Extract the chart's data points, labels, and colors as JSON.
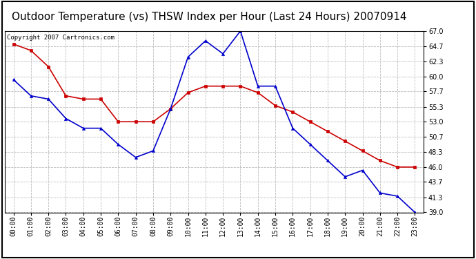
{
  "title": "Outdoor Temperature (vs) THSW Index per Hour (Last 24 Hours) 20070914",
  "copyright_text": "Copyright 2007 Cartronics.com",
  "hours": [
    "00:00",
    "01:00",
    "02:00",
    "03:00",
    "04:00",
    "05:00",
    "06:00",
    "07:00",
    "08:00",
    "09:00",
    "10:00",
    "11:00",
    "12:00",
    "13:00",
    "14:00",
    "15:00",
    "16:00",
    "17:00",
    "18:00",
    "19:00",
    "20:00",
    "21:00",
    "22:00",
    "23:00"
  ],
  "red_temp": [
    65.0,
    64.0,
    61.5,
    57.0,
    56.5,
    56.5,
    53.0,
    53.0,
    53.0,
    55.0,
    57.5,
    58.5,
    58.5,
    58.5,
    57.5,
    55.5,
    54.5,
    53.0,
    51.5,
    50.0,
    48.5,
    47.0,
    46.0,
    46.0
  ],
  "blue_thsw": [
    59.5,
    57.0,
    56.5,
    53.5,
    52.0,
    52.0,
    49.5,
    47.5,
    48.5,
    55.0,
    63.0,
    65.5,
    63.5,
    67.0,
    58.5,
    58.5,
    52.0,
    49.5,
    47.0,
    44.5,
    45.5,
    42.0,
    41.5,
    39.0
  ],
  "ylim_min": 39.0,
  "ylim_max": 67.0,
  "yticks": [
    39.0,
    41.3,
    43.7,
    46.0,
    48.3,
    50.7,
    53.0,
    55.3,
    57.7,
    60.0,
    62.3,
    64.7,
    67.0
  ],
  "red_color": "#cc0000",
  "blue_color": "#0000cc",
  "background_color": "#ffffff",
  "plot_bg_color": "#ffffff",
  "grid_color": "#bbbbbb",
  "title_fontsize": 11,
  "copyright_fontsize": 6.5,
  "tick_fontsize": 7,
  "figwidth": 6.9,
  "figheight": 3.75,
  "dpi": 100
}
